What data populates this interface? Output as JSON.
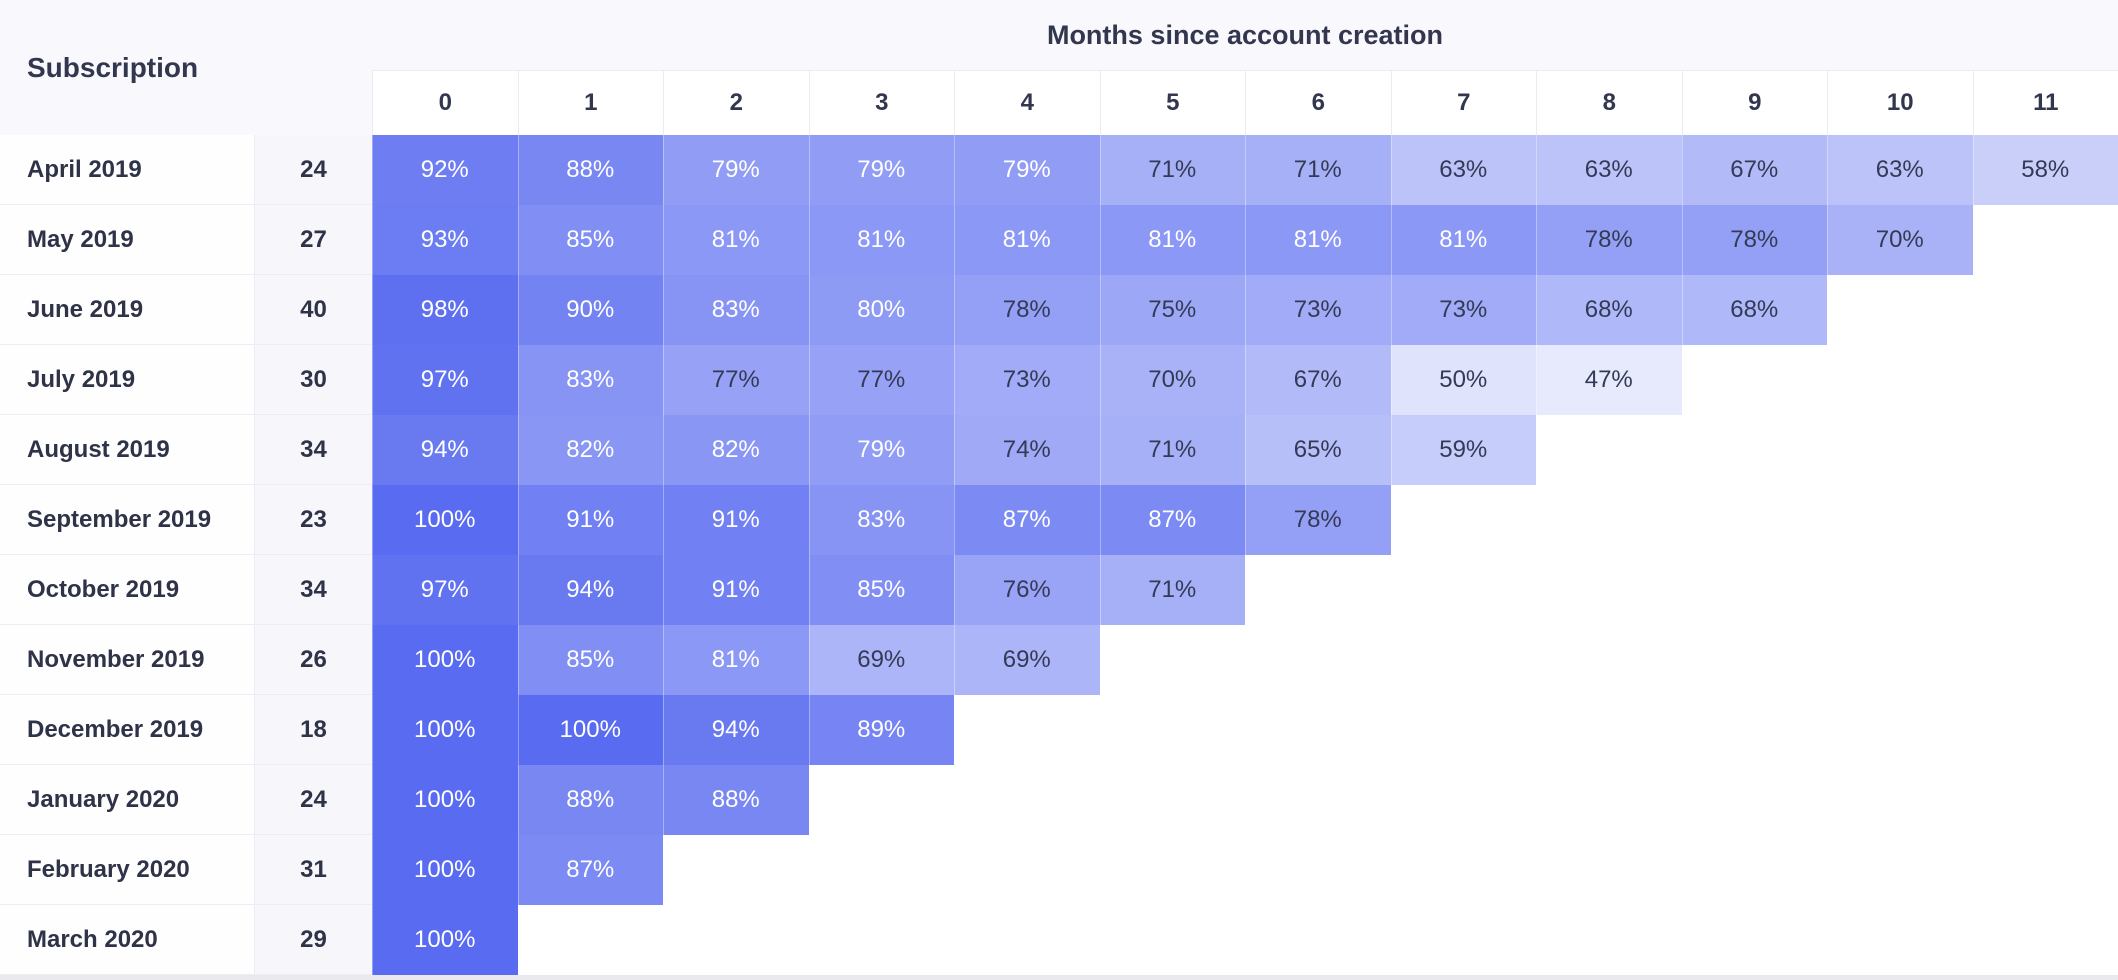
{
  "header": {
    "left_title": "Subscription",
    "top_title": "Months since account creation"
  },
  "colors": {
    "base_blue": "#596bf0",
    "dark_text": "#343a56",
    "light_text": "#ffffff",
    "header_bg": "#f9f9fd",
    "count_col_bg": "#f7f7fb",
    "grid_border": "#ebebf1"
  },
  "chart_data": {
    "type": "heatmap",
    "title": "Months since account creation",
    "row_header": "Subscription",
    "value_unit": "%",
    "columns": [
      "0",
      "1",
      "2",
      "3",
      "4",
      "5",
      "6",
      "7",
      "8",
      "9",
      "10",
      "11"
    ],
    "rows": [
      {
        "label": "April 2019",
        "count": 24,
        "values": [
          92,
          88,
          79,
          79,
          79,
          71,
          71,
          63,
          63,
          67,
          63,
          58
        ]
      },
      {
        "label": "May 2019",
        "count": 27,
        "values": [
          93,
          85,
          81,
          81,
          81,
          81,
          81,
          81,
          78,
          78,
          70
        ]
      },
      {
        "label": "June 2019",
        "count": 40,
        "values": [
          98,
          90,
          83,
          80,
          78,
          75,
          73,
          73,
          68,
          68
        ]
      },
      {
        "label": "July 2019",
        "count": 30,
        "values": [
          97,
          83,
          77,
          77,
          73,
          70,
          67,
          50,
          47
        ]
      },
      {
        "label": "August 2019",
        "count": 34,
        "values": [
          94,
          82,
          82,
          79,
          74,
          71,
          65,
          59
        ]
      },
      {
        "label": "September 2019",
        "count": 23,
        "values": [
          100,
          91,
          91,
          83,
          87,
          87,
          78
        ]
      },
      {
        "label": "October 2019",
        "count": 34,
        "values": [
          97,
          94,
          91,
          85,
          76,
          71
        ]
      },
      {
        "label": "November 2019",
        "count": 26,
        "values": [
          100,
          85,
          81,
          69,
          69
        ]
      },
      {
        "label": "December 2019",
        "count": 18,
        "values": [
          100,
          100,
          94,
          89
        ]
      },
      {
        "label": "January 2020",
        "count": 24,
        "values": [
          100,
          88,
          88
        ]
      },
      {
        "label": "February 2020",
        "count": 31,
        "values": [
          100,
          87
        ]
      },
      {
        "label": "March 2020",
        "count": 29,
        "values": [
          100
        ]
      }
    ],
    "color_scale": {
      "base_rgb": [
        89,
        107,
        240
      ],
      "alpha_formula": "(value - 38) / 62, clamped 0.06..1",
      "white_text_threshold": 79
    },
    "legend_position": "none",
    "grid": false
  }
}
